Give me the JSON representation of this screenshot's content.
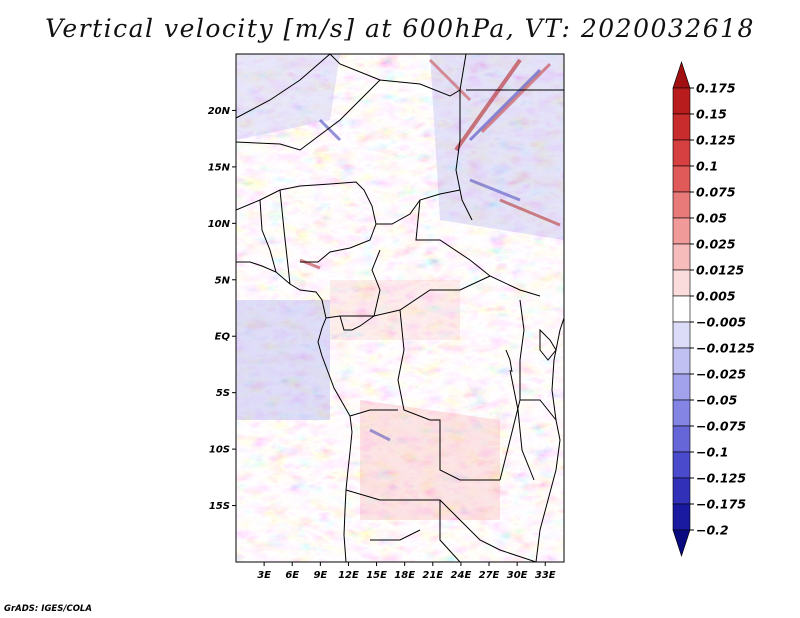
{
  "title": "Vertical velocity [m/s] at 600hPa, VT: 2020032618",
  "credit": "GrADS: IGES/COLA",
  "map": {
    "lon_range": [
      0,
      35
    ],
    "lat_range": [
      -20,
      25
    ],
    "lon_tick_labels": [
      "3E",
      "6E",
      "9E",
      "12E",
      "15E",
      "18E",
      "21E",
      "24E",
      "27E",
      "30E",
      "33E"
    ],
    "lon_tick_values": [
      3,
      6,
      9,
      12,
      15,
      18,
      21,
      24,
      27,
      30,
      33
    ],
    "lat_tick_labels": [
      "20N",
      "15N",
      "10N",
      "5N",
      "EQ",
      "5S",
      "10S",
      "15S"
    ],
    "lat_tick_values": [
      20,
      15,
      10,
      5,
      0,
      -5,
      -10,
      -15
    ]
  },
  "colorbar": {
    "labels": [
      "0.175",
      "0.15",
      "0.125",
      "0.1",
      "0.075",
      "0.05",
      "0.025",
      "0.0125",
      "0.005",
      "−0.005",
      "−0.0125",
      "−0.025",
      "−0.05",
      "−0.075",
      "−0.1",
      "−0.125",
      "−0.175",
      "−0.2"
    ],
    "colors": [
      "#a01010",
      "#b81c1c",
      "#c92c2c",
      "#d64040",
      "#e05a5a",
      "#e87a7a",
      "#f09a9a",
      "#f6bcbc",
      "#fadcdc",
      "#ffffff",
      "#dcdcf8",
      "#c0c0f2",
      "#a2a2ec",
      "#8484e4",
      "#6666d8",
      "#4a4acc",
      "#3030b8",
      "#1a1aa0",
      "#0a0a80"
    ]
  }
}
